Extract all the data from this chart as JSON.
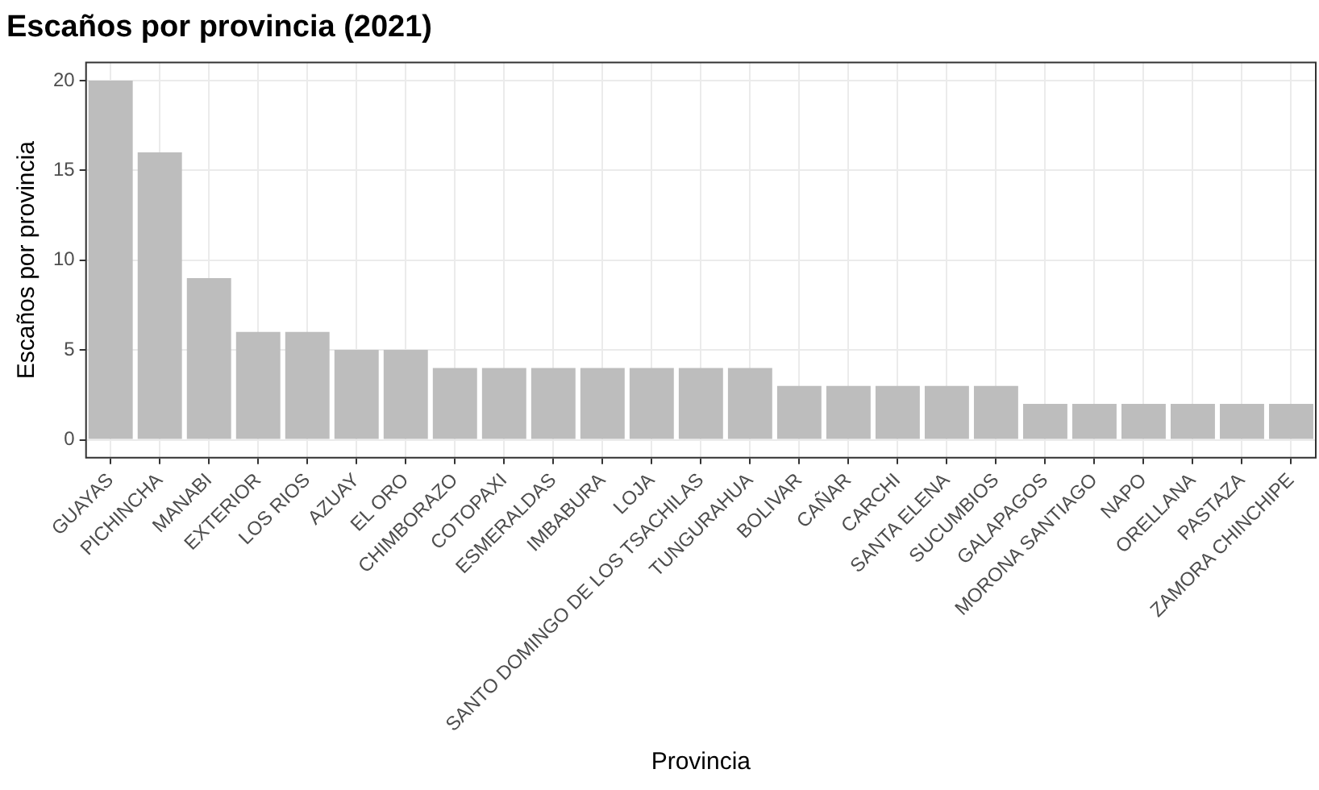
{
  "chart_data": {
    "type": "bar",
    "title": "Escaños por provincia (2021)",
    "xlabel": "Provincia",
    "ylabel": "Escaños por provincia",
    "categories": [
      "GUAYAS",
      "PICHINCHA",
      "MANABI",
      "EXTERIOR",
      "LOS RIOS",
      "AZUAY",
      "EL ORO",
      "CHIMBORAZO",
      "COTOPAXI",
      "ESMERALDAS",
      "IMBABURA",
      "LOJA",
      "SANTO DOMINGO DE LOS TSACHILAS",
      "TUNGURAHUA",
      "BOLIVAR",
      "CAÑAR",
      "CARCHI",
      "SANTA ELENA",
      "SUCUMBIOS",
      "GALAPAGOS",
      "MORONA SANTIAGO",
      "NAPO",
      "ORELLANA",
      "PASTAZA",
      "ZAMORA CHINCHIPE"
    ],
    "values": [
      20,
      16,
      9,
      6,
      6,
      5,
      5,
      4,
      4,
      4,
      4,
      4,
      4,
      4,
      3,
      3,
      3,
      3,
      3,
      2,
      2,
      2,
      2,
      2,
      2
    ],
    "color": "#bdbdbd",
    "ylim": [
      -1,
      21
    ],
    "yticks": [
      0,
      5,
      10,
      15,
      20
    ],
    "grid": true
  }
}
